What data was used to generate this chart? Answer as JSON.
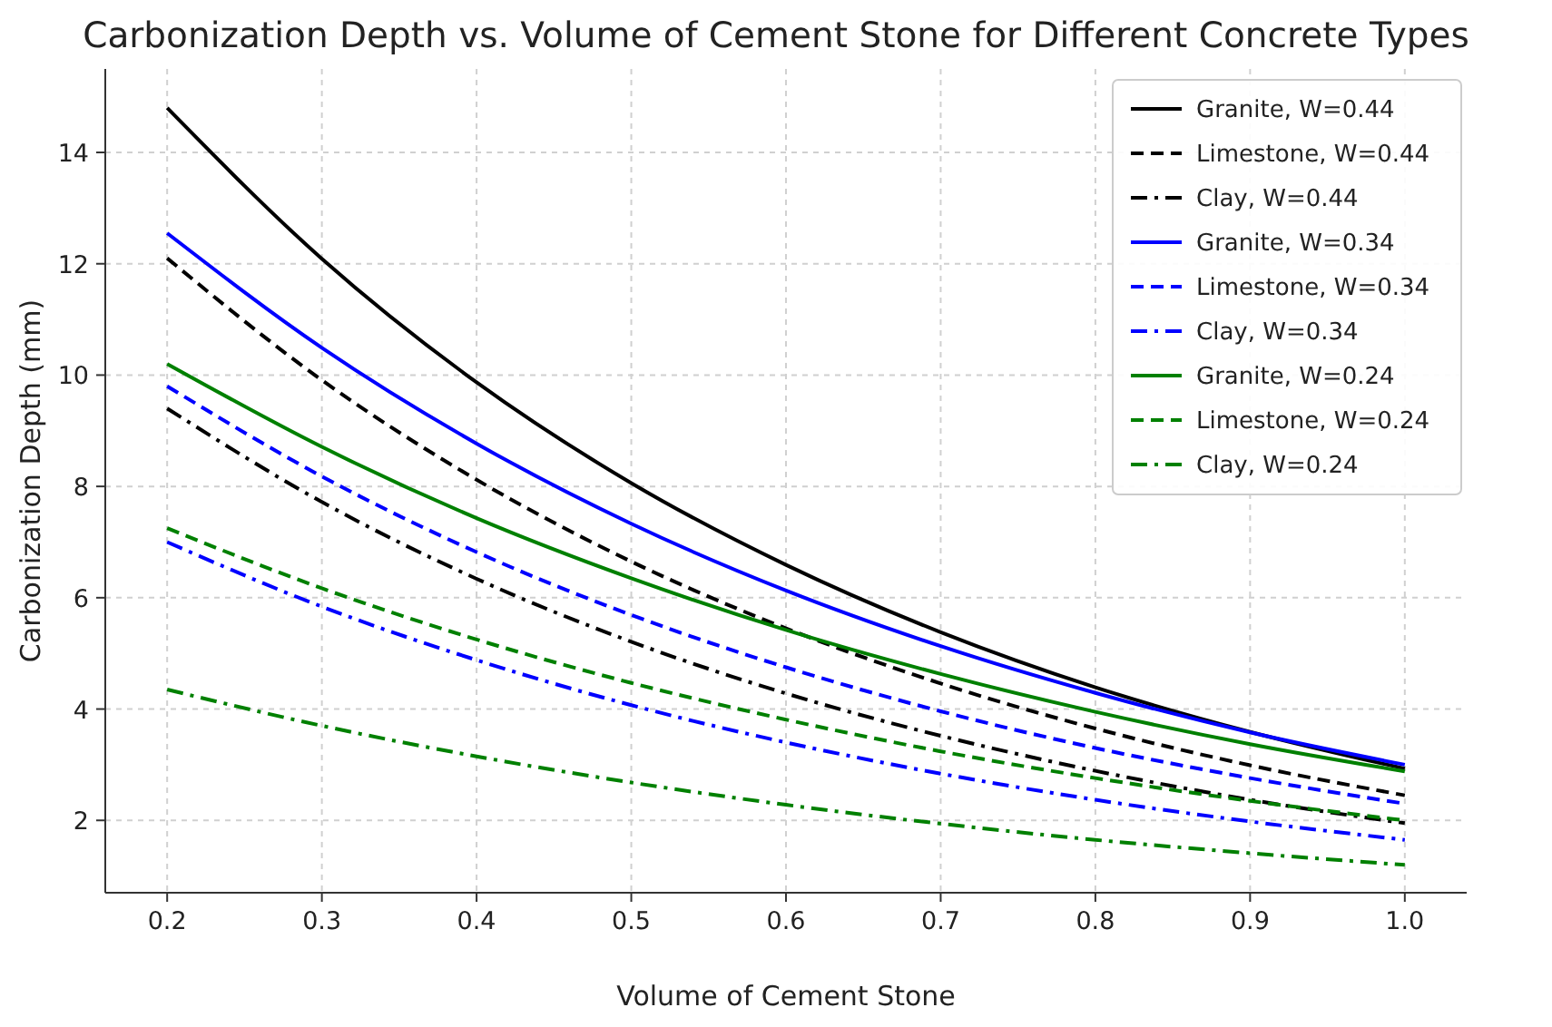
{
  "chart_data": {
    "type": "line",
    "title": "Carbonization Depth vs. Volume of Cement Stone for Different Concrete Types",
    "xlabel": "Volume of Cement Stone",
    "ylabel": "Carbonization Depth (mm)",
    "x": [
      0.2,
      0.3,
      0.4,
      0.5,
      0.6,
      0.7,
      0.8,
      0.9,
      1.0
    ],
    "series": [
      {
        "name": "Granite, W=0.44",
        "color": "#000000",
        "line_style": "solid",
        "values": [
          14.8,
          12.09,
          9.87,
          8.06,
          6.59,
          5.38,
          4.39,
          3.59,
          2.93
        ]
      },
      {
        "name": "Limestone, W=0.44",
        "color": "#000000",
        "line_style": "dashed",
        "values": [
          12.1,
          9.91,
          8.12,
          6.65,
          5.45,
          4.46,
          3.65,
          2.99,
          2.45
        ]
      },
      {
        "name": "Clay, W=0.44",
        "color": "#000000",
        "line_style": "dashdot",
        "values": [
          9.4,
          7.72,
          6.34,
          5.21,
          4.28,
          3.52,
          2.89,
          2.37,
          1.95
        ]
      },
      {
        "name": "Granite, W=0.34",
        "color": "#0000ff",
        "line_style": "solid",
        "values": [
          12.55,
          10.49,
          8.77,
          7.33,
          6.13,
          5.13,
          4.29,
          3.58,
          3.0
        ]
      },
      {
        "name": "Limestone, W=0.34",
        "color": "#0000ff",
        "line_style": "dashed",
        "values": [
          9.8,
          8.18,
          6.82,
          5.69,
          4.75,
          3.96,
          3.3,
          2.76,
          2.3
        ]
      },
      {
        "name": "Clay, W=0.34",
        "color": "#0000ff",
        "line_style": "dashdot",
        "values": [
          7.0,
          5.84,
          4.88,
          4.07,
          3.4,
          2.84,
          2.37,
          1.98,
          1.65
        ]
      },
      {
        "name": "Granite, W=0.24",
        "color": "#008000",
        "line_style": "solid",
        "values": [
          10.2,
          8.71,
          7.43,
          6.35,
          5.42,
          4.63,
          3.95,
          3.37,
          2.88
        ]
      },
      {
        "name": "Limestone, W=0.24",
        "color": "#008000",
        "line_style": "dashed",
        "values": [
          7.25,
          6.17,
          5.25,
          4.47,
          3.81,
          3.24,
          2.76,
          2.35,
          2.0
        ]
      },
      {
        "name": "Clay, W=0.24",
        "color": "#008000",
        "line_style": "dashdot",
        "values": [
          4.35,
          3.7,
          3.15,
          2.68,
          2.28,
          1.94,
          1.65,
          1.41,
          1.2
        ]
      }
    ],
    "xlim": [
      0.16,
      1.04
    ],
    "xticks": [
      0.2,
      0.3,
      0.4,
      0.5,
      0.6,
      0.7,
      0.8,
      0.9,
      {
        "value": 1.0,
        "label": "1.0"
      }
    ],
    "ylim": [
      0.7,
      15.5
    ],
    "yticks": [
      2,
      4,
      6,
      8,
      10,
      12,
      14
    ],
    "grid": true,
    "legend": "top right",
    "marker": "none"
  }
}
